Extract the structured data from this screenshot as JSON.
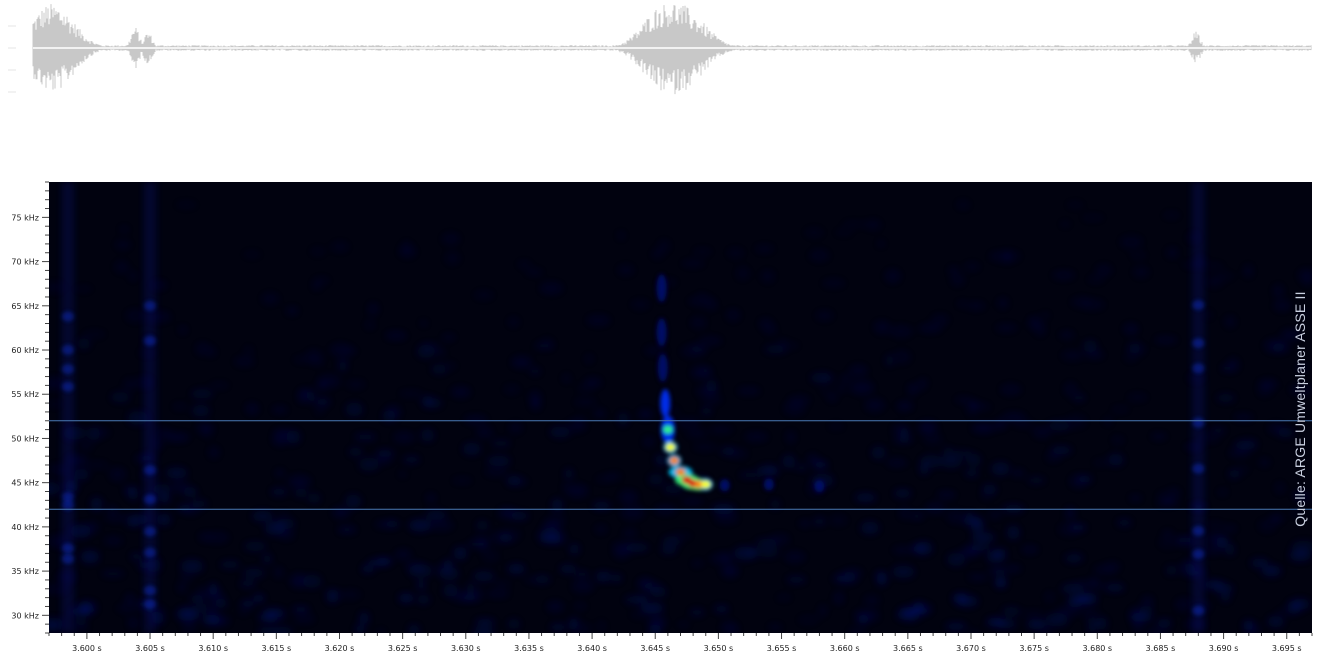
{
  "chart_data": [
    {
      "type": "line",
      "name": "waveform",
      "title": "",
      "xlim": [
        3.597,
        3.697
      ],
      "bursts": [
        {
          "t": 3.5985,
          "amp": 0.95
        },
        {
          "t": 3.605,
          "amp": 0.45
        },
        {
          "t": 3.606,
          "amp": 0.35
        },
        {
          "t": 3.646,
          "amp": 0.55
        },
        {
          "t": 3.6465,
          "amp": 0.95
        },
        {
          "t": 3.647,
          "amp": 1.0
        },
        {
          "t": 3.6475,
          "amp": 0.95
        },
        {
          "t": 3.648,
          "amp": 0.8
        },
        {
          "t": 3.6485,
          "amp": 0.5
        },
        {
          "t": 3.688,
          "amp": 0.35
        }
      ],
      "line_color": "#c8c8c8"
    },
    {
      "type": "heatmap",
      "name": "spectrogram",
      "title": "",
      "xlabel": "",
      "ylabel": "",
      "xlim": [
        3.597,
        3.697
      ],
      "ylim": [
        28,
        79
      ],
      "x_ticks": [
        {
          "value": 3.6,
          "label": "3.600 s"
        },
        {
          "value": 3.605,
          "label": "3.605 s"
        },
        {
          "value": 3.61,
          "label": "3.610 s"
        },
        {
          "value": 3.615,
          "label": "3.615 s"
        },
        {
          "value": 3.62,
          "label": "3.620 s"
        },
        {
          "value": 3.625,
          "label": "3.625 s"
        },
        {
          "value": 3.63,
          "label": "3.630 s"
        },
        {
          "value": 3.635,
          "label": "3.635 s"
        },
        {
          "value": 3.64,
          "label": "3.640 s"
        },
        {
          "value": 3.645,
          "label": "3.645 s"
        },
        {
          "value": 3.65,
          "label": "3.650 s"
        },
        {
          "value": 3.655,
          "label": "3.655 s"
        },
        {
          "value": 3.66,
          "label": "3.660 s"
        },
        {
          "value": 3.665,
          "label": "3.665 s"
        },
        {
          "value": 3.67,
          "label": "3.670 s"
        },
        {
          "value": 3.675,
          "label": "3.675 s"
        },
        {
          "value": 3.68,
          "label": "3.680 s"
        },
        {
          "value": 3.685,
          "label": "3.685 s"
        },
        {
          "value": 3.69,
          "label": "3.690 s"
        },
        {
          "value": 3.695,
          "label": "3.695 s"
        }
      ],
      "y_ticks": [
        {
          "value": 75,
          "label": "75 kHz"
        },
        {
          "value": 70,
          "label": "70 kHz"
        },
        {
          "value": 65,
          "label": "65 kHz"
        },
        {
          "value": 60,
          "label": "60 kHz"
        },
        {
          "value": 55,
          "label": "55 kHz"
        },
        {
          "value": 50,
          "label": "50 kHz"
        },
        {
          "value": 45,
          "label": "45 kHz"
        },
        {
          "value": 40,
          "label": "40 kHz"
        },
        {
          "value": 35,
          "label": "35 kHz"
        },
        {
          "value": 30,
          "label": "30 kHz"
        }
      ],
      "reference_lines_khz": [
        52,
        42
      ],
      "call": [
        {
          "t": 3.6455,
          "f": 67,
          "intensity": 0.2
        },
        {
          "t": 3.6455,
          "f": 62,
          "intensity": 0.3
        },
        {
          "t": 3.6456,
          "f": 58,
          "intensity": 0.38
        },
        {
          "t": 3.6458,
          "f": 54,
          "intensity": 0.5
        },
        {
          "t": 3.646,
          "f": 51,
          "intensity": 0.62
        },
        {
          "t": 3.6462,
          "f": 49,
          "intensity": 0.72
        },
        {
          "t": 3.6465,
          "f": 47.5,
          "intensity": 0.82
        },
        {
          "t": 3.647,
          "f": 46.2,
          "intensity": 0.9
        },
        {
          "t": 3.6475,
          "f": 45.3,
          "intensity": 0.97
        },
        {
          "t": 3.648,
          "f": 44.9,
          "intensity": 1.0
        },
        {
          "t": 3.6485,
          "f": 44.8,
          "intensity": 0.92
        },
        {
          "t": 3.649,
          "f": 44.8,
          "intensity": 0.7
        },
        {
          "t": 3.6505,
          "f": 44.7,
          "intensity": 0.3
        },
        {
          "t": 3.654,
          "f": 44.8,
          "intensity": 0.22
        },
        {
          "t": 3.658,
          "f": 44.6,
          "intensity": 0.14
        }
      ],
      "background_color": "#01020f",
      "reference_line_color": "#4a7bb5",
      "colormap": [
        "#000010",
        "#001070",
        "#0030ff",
        "#00c8ff",
        "#30ff80",
        "#ffff00",
        "#ff8000",
        "#e00000"
      ]
    }
  ],
  "credit": "Quelle: ARGE Umweltplaner ASSE II"
}
